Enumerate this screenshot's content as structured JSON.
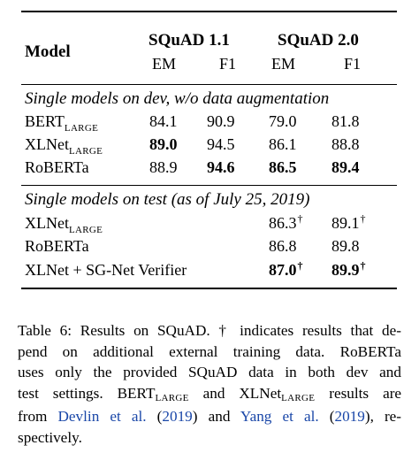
{
  "table": {
    "header": {
      "model": "Model",
      "squad11": "SQuAD 1.1",
      "squad20": "SQuAD 2.0",
      "em": "EM",
      "f1": "F1"
    },
    "section_dev": "Single models on dev, w/o data augmentation",
    "section_test": "Single models on test (as of July 25, 2019)",
    "large_suffix": "LARGE",
    "dagger": "†",
    "dev_rows": [
      {
        "name": "BERT",
        "large": true,
        "em11": "84.1",
        "f111": "90.9",
        "em20": "79.0",
        "f120": "81.8"
      },
      {
        "name": "XLNet",
        "large": true,
        "em11": "89.0",
        "f111": "94.5",
        "em20": "86.1",
        "f120": "88.8"
      },
      {
        "name": "RoBERTa",
        "large": false,
        "em11": "88.9",
        "f111": "94.6",
        "em20": "86.5",
        "f120": "89.4"
      }
    ],
    "test_rows": [
      {
        "name": "XLNet",
        "large": true,
        "em20": "86.3",
        "f120": "89.1"
      },
      {
        "name": "RoBERTa",
        "large": false,
        "em20": "86.8",
        "f120": "89.8"
      },
      {
        "name": "XLNet + SG-Net Verifier",
        "large": false,
        "em20": "87.0",
        "f120": "89.9"
      }
    ]
  },
  "caption": {
    "l1a": "Table 6: Results on SQuAD. † indicates results that de-",
    "l2": "pend on additional external training data.  RoBERTa",
    "l3": "uses only the provided SQuAD data in both dev and",
    "l4_test": "test settings.",
    "l4_bert": "BERT",
    "l4_and": "and",
    "l4_xlnet": "XLNet",
    "l4_tail": "results are",
    "l5_from": "from",
    "l5_devlin": "Devlin et al.",
    "l5_y1a": "(",
    "l5_y1": "2019",
    "l5_y1b": ")",
    "l5_and": "and",
    "l5_yang": "Yang et al.",
    "l5_y2a": "(",
    "l5_y2": "2019",
    "l5_y2b": "), re-",
    "l6": "spectively.",
    "large": "LARGE"
  }
}
